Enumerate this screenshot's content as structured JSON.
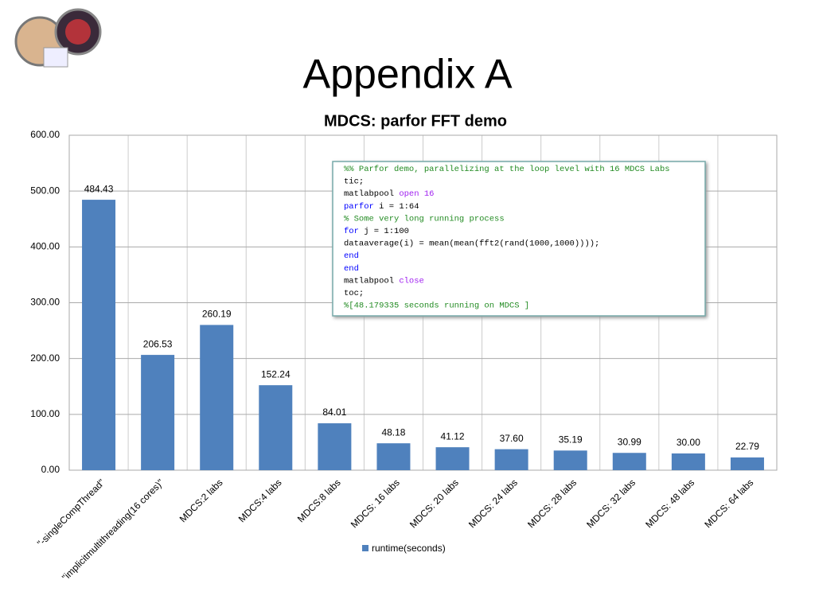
{
  "slide_title": "Appendix A",
  "chart_data": {
    "type": "bar",
    "title": "MDCS: parfor FFT demo",
    "categories": [
      "\"-singleCompThread\"",
      "\"implicitmultithreading(16 cores)\"",
      "MDCS:2 labs",
      "MDCS:4 labs",
      "MDCS:8 labs",
      "MDCS: 16 labs",
      "MDCS: 20 labs",
      "MDCS: 24 labs",
      "MDCS: 28 labs",
      "MDCS: 32 labs",
      "MDCS: 48 labs",
      "MDCS: 64 labs"
    ],
    "series": [
      {
        "name": "runtime(seconds)",
        "color": "#4f81bd",
        "values": [
          484.43,
          206.53,
          260.19,
          152.24,
          84.01,
          48.18,
          41.12,
          37.6,
          35.19,
          30.99,
          30,
          22.79
        ],
        "value_labels": [
          "484.43",
          "206.53",
          "260.19",
          "152.24",
          "84.01",
          "48.18",
          "41.12",
          "37.60",
          "35.19",
          "30.99",
          "30.00",
          "22.79"
        ]
      }
    ],
    "ylim": [
      0,
      600
    ],
    "yticks": [
      {
        "value": 0,
        "label": "0.00"
      },
      {
        "value": 100,
        "label": "100.00"
      },
      {
        "value": 200,
        "label": "200.00"
      },
      {
        "value": 300,
        "label": "300.00"
      },
      {
        "value": 400,
        "label": "400.00"
      },
      {
        "value": 500,
        "label": "500.00"
      },
      {
        "value": 600,
        "label": "600.00"
      }
    ],
    "grid": true,
    "legend": "bottom"
  },
  "code_box": {
    "lines": [
      [
        {
          "text": "%% Parfor demo, parallelizing at the loop level with 16 MDCS Labs",
          "color": "#228b22"
        }
      ],
      [
        {
          "text": "tic;",
          "color": "#000000"
        }
      ],
      [
        {
          "text": "matlabpool ",
          "color": "#000000"
        },
        {
          "text": "open 16",
          "color": "#a020f0"
        }
      ],
      [
        {
          "text": "parfor",
          "color": "#0000ff"
        },
        {
          "text": " i = 1:64",
          "color": "#000000"
        }
      ],
      [
        {
          "text": "% Some very long running process",
          "color": "#228b22"
        }
      ],
      [
        {
          "text": "for",
          "color": "#0000ff"
        },
        {
          "text": " j = 1:100",
          "color": "#000000"
        }
      ],
      [
        {
          "text": "dataaverage(i) = mean(mean(fft2(rand(1000,1000))));",
          "color": "#000000"
        }
      ],
      [
        {
          "text": "end",
          "color": "#0000ff"
        }
      ],
      [
        {
          "text": "end",
          "color": "#0000ff"
        }
      ],
      [
        {
          "text": "matlabpool ",
          "color": "#000000"
        },
        {
          "text": "close",
          "color": "#a020f0"
        }
      ],
      [
        {
          "text": "toc;",
          "color": "#000000"
        }
      ],
      [
        {
          "text": "%[48.179335 seconds running on MDCS ]",
          "color": "#228b22"
        }
      ]
    ]
  }
}
